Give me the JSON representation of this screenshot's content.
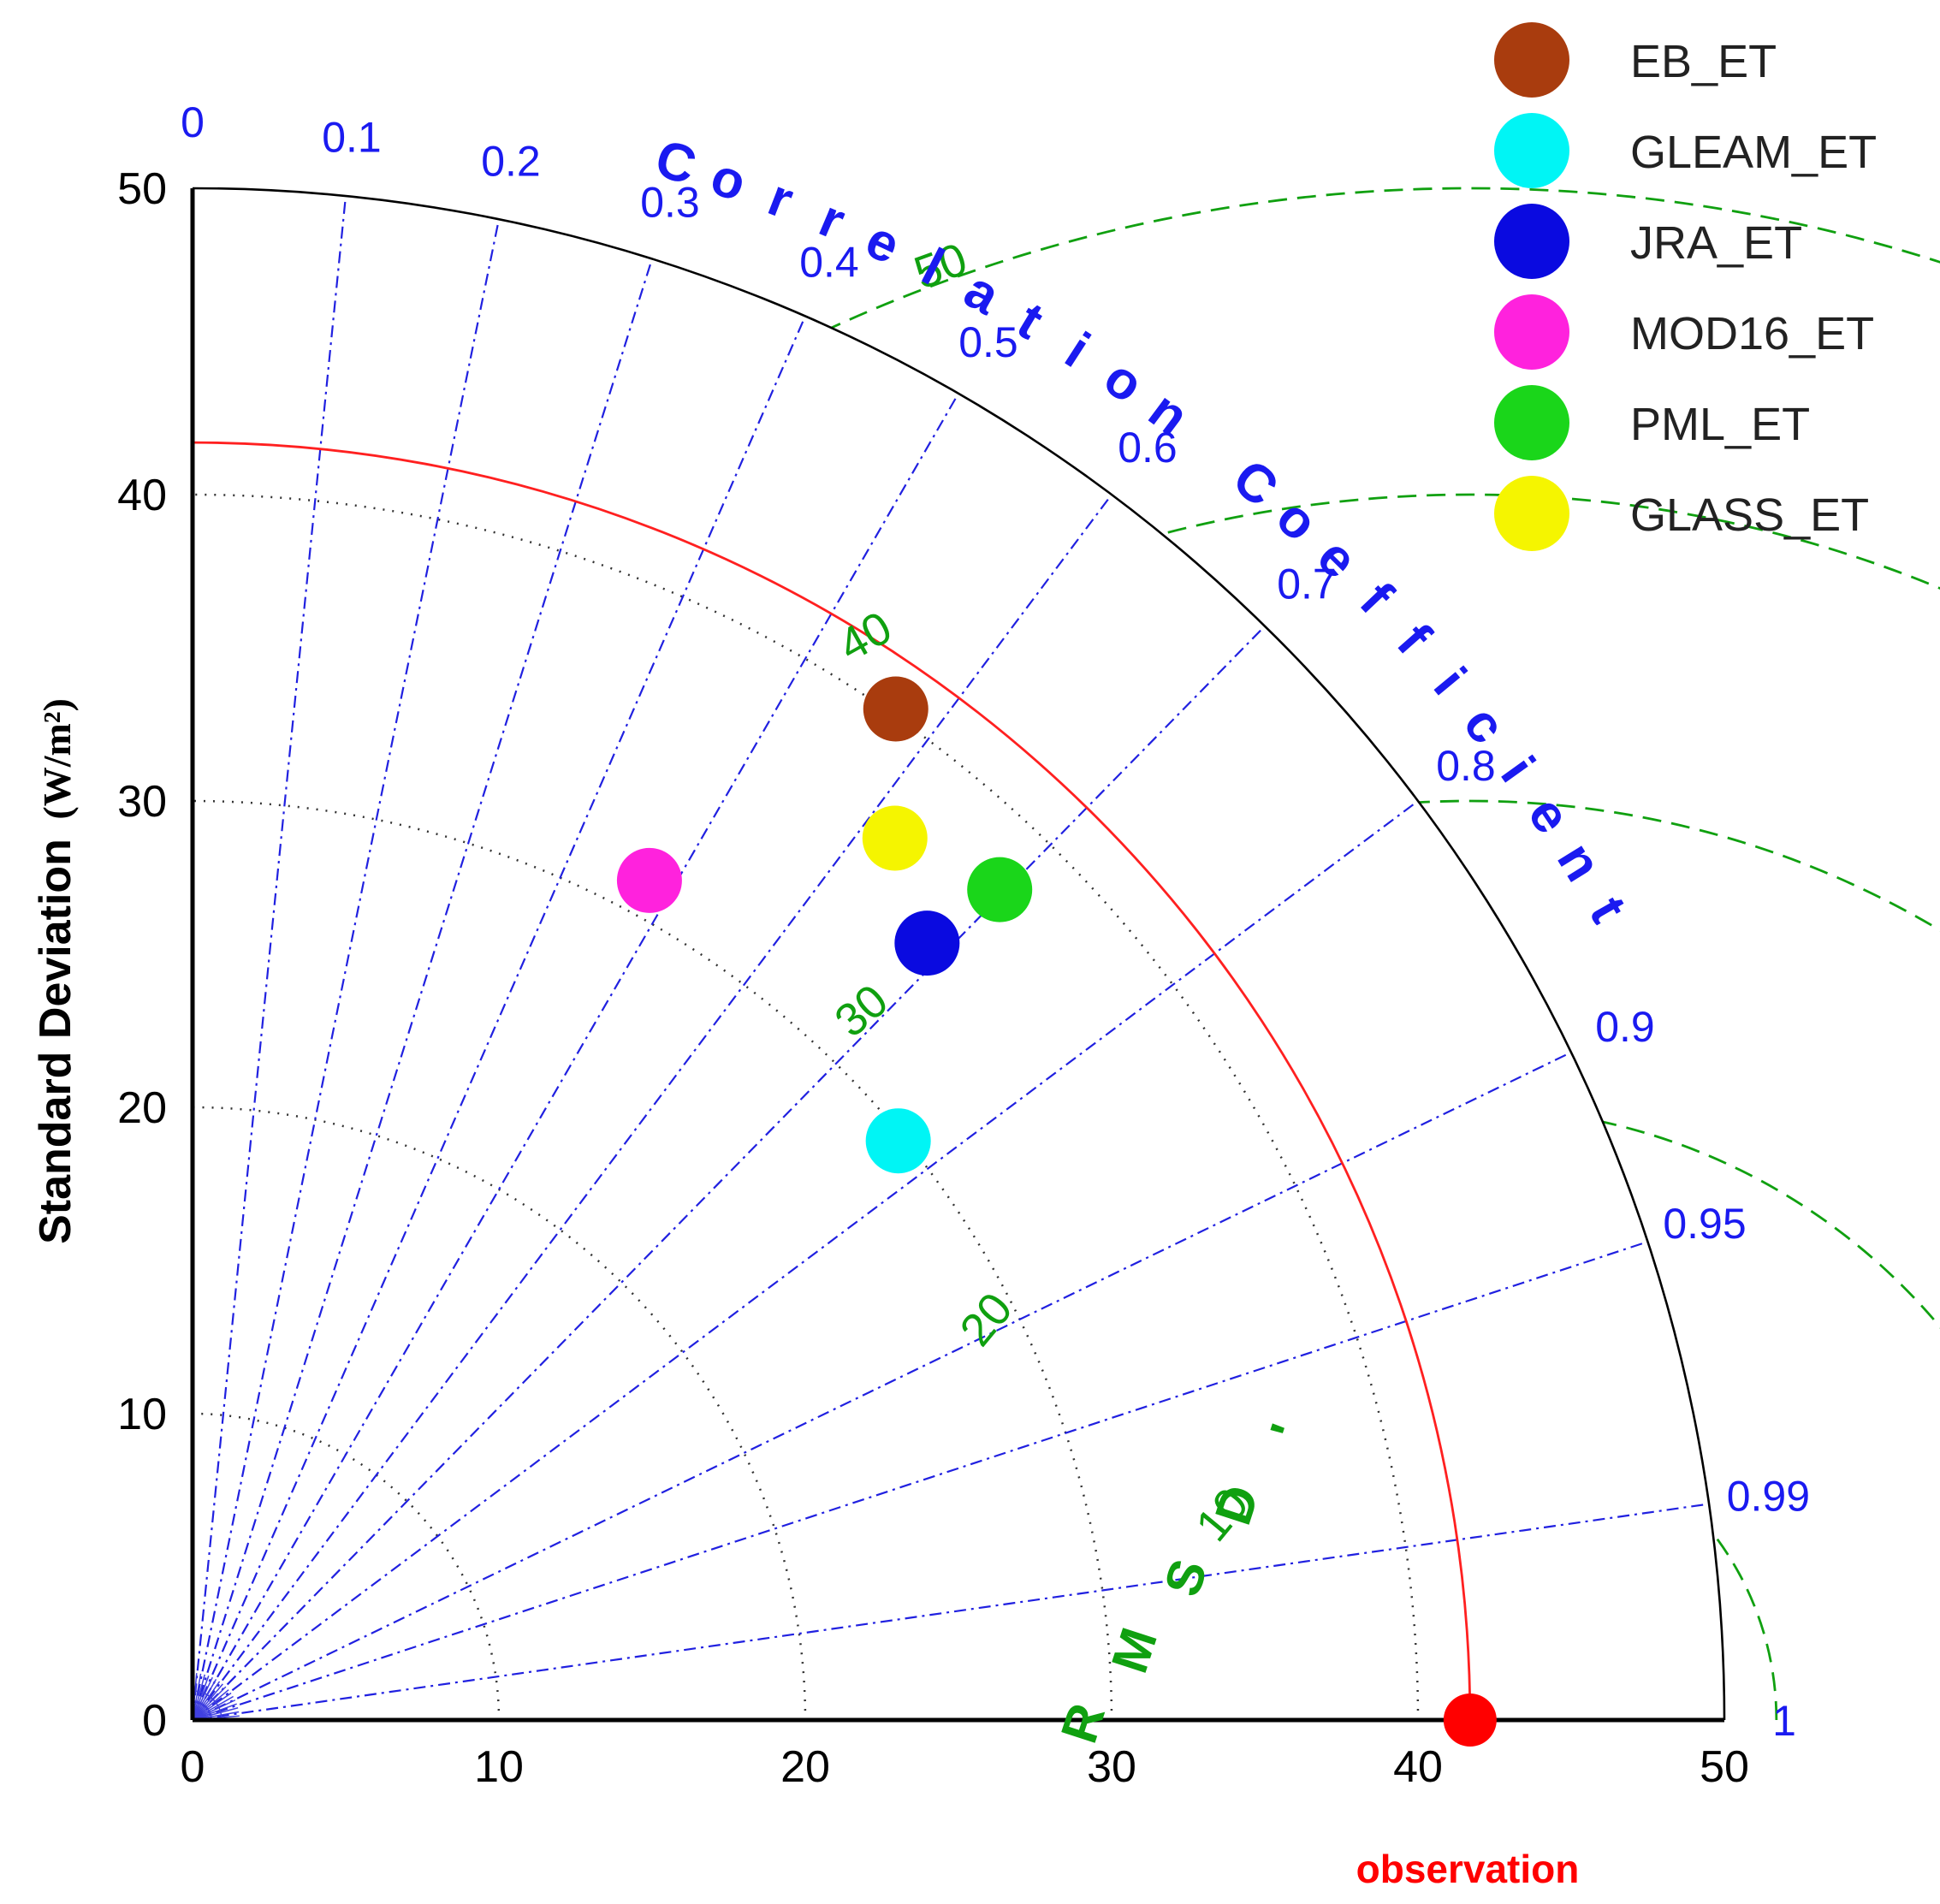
{
  "chart_data": {
    "type": "scatter",
    "subtype": "taylor-diagram",
    "ylabel": "Standard Deviation",
    "ylabel_units": "(W/m²)",
    "correlation_label": "Correlation Coefficient",
    "rmsd_label": "RMSD'",
    "observation_label": "observation",
    "std_range": [
      0,
      50
    ],
    "x_ticks": [
      0,
      10,
      20,
      30,
      40,
      50
    ],
    "y_ticks": [
      0,
      10,
      20,
      30,
      40,
      50
    ],
    "std_grid": [
      10,
      20,
      30,
      40
    ],
    "correlation_ticks": [
      {
        "value": 0,
        "label": "0"
      },
      {
        "value": 0.1,
        "label": "0.1"
      },
      {
        "value": 0.2,
        "label": "0.2"
      },
      {
        "value": 0.3,
        "label": "0.3"
      },
      {
        "value": 0.4,
        "label": "0.4"
      },
      {
        "value": 0.5,
        "label": "0.5"
      },
      {
        "value": 0.6,
        "label": "0.6"
      },
      {
        "value": 0.7,
        "label": "0.7"
      },
      {
        "value": 0.8,
        "label": "0.8"
      },
      {
        "value": 0.9,
        "label": "0.9"
      },
      {
        "value": 0.95,
        "label": "0.95"
      },
      {
        "value": 0.99,
        "label": "0.99"
      },
      {
        "value": 1,
        "label": "1"
      }
    ],
    "rmsd_contours": [
      {
        "value": 10,
        "label": "10"
      },
      {
        "value": 20,
        "label": "20"
      },
      {
        "value": 30,
        "label": "30"
      },
      {
        "value": 40,
        "label": "40"
      },
      {
        "value": 50,
        "label": "50"
      }
    ],
    "observation": {
      "std": 41.7
    },
    "series": [
      {
        "name": "EB_ET",
        "color": "#a93c0e",
        "std": 40.2,
        "correlation": 0.571
      },
      {
        "name": "GLEAM_ET",
        "color": "#00f5f5",
        "std": 29.8,
        "correlation": 0.773
      },
      {
        "name": "JRA_ET",
        "color": "#0a0ae0",
        "std": 34.9,
        "correlation": 0.687
      },
      {
        "name": "MOD16_ET",
        "color": "#ff22dd",
        "std": 31.2,
        "correlation": 0.478
      },
      {
        "name": "PML_ET",
        "color": "#1ad61a",
        "std": 37.8,
        "correlation": 0.697
      },
      {
        "name": "GLASS_ET",
        "color": "#f5f500",
        "std": 36.8,
        "correlation": 0.623
      }
    ]
  }
}
